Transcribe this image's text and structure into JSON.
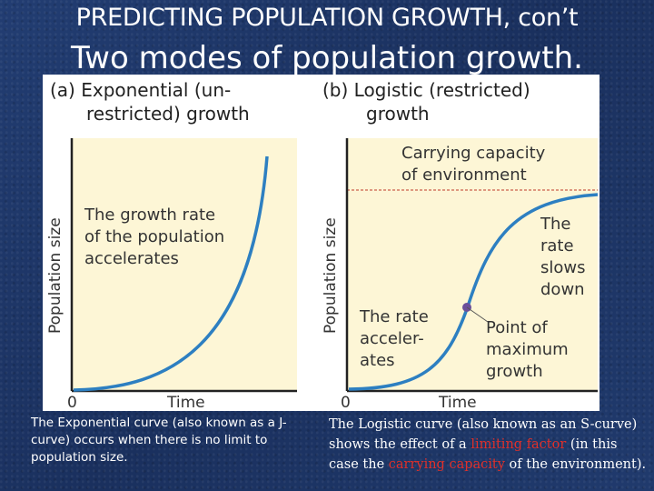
{
  "slide": {
    "title_line1": "PREDICTING POPULATION GROWTH, con’t",
    "title_line2": "Two modes of population growth."
  },
  "panel_a": {
    "heading_line1": "(a) Exponential (un-",
    "heading_line2": "restricted) growth",
    "annotation_line1": "The growth rate",
    "annotation_line2": "of the population",
    "annotation_line3": "accelerates",
    "y_label": "Population size",
    "x_label": "Time",
    "origin": "0"
  },
  "panel_b": {
    "heading_line1": "(b) Logistic (restricted)",
    "heading_line2": "growth",
    "capacity_line1": "Carrying capacity",
    "capacity_line2": "of environment",
    "slows_line1": "The",
    "slows_line2": "rate",
    "slows_line3": "slows",
    "slows_line4": "down",
    "accel_line1": "The rate",
    "accel_line2": "acceler-",
    "accel_line3": "ates",
    "point_line1": "Point of",
    "point_line2": "maximum",
    "point_line3": "growth",
    "y_label": "Population size",
    "x_label": "Time",
    "origin": "0"
  },
  "captions": {
    "left": "The Exponential curve (also known as a J-curve) occurs when there is no limit to population size.",
    "right_part1": "The Logistic curve (also known as an S-curve) shows the effect of a ",
    "right_highlight1": "limiting factor",
    "right_part2": " (in this case the ",
    "right_highlight2": "carrying capacity",
    "right_part3": " of the environment)."
  },
  "colors": {
    "curve": "#2d7fc1",
    "plot_bg": "#fdf6d6",
    "capacity_line": "#c0392b",
    "highlight": "#e0302a",
    "point": "#6b4f9a"
  }
}
